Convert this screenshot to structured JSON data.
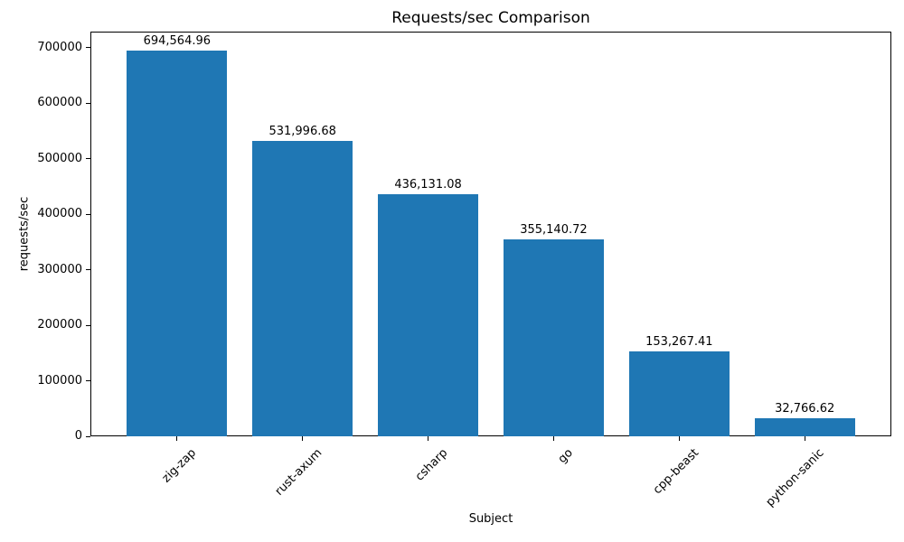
{
  "chart_data": {
    "type": "bar",
    "title": "Requests/sec Comparison",
    "xlabel": "Subject",
    "ylabel": "requests/sec",
    "categories": [
      "zig-zap",
      "rust-axum",
      "csharp",
      "go",
      "cpp-beast",
      "python-sanic"
    ],
    "values": [
      694564.96,
      531996.68,
      436131.08,
      355140.72,
      153267.41,
      32766.62
    ],
    "value_labels": [
      "694,564.96",
      "531,996.68",
      "436,131.08",
      "355,140.72",
      "153,267.41",
      "32,766.62"
    ],
    "yticks": [
      0,
      100000,
      200000,
      300000,
      400000,
      500000,
      600000,
      700000
    ],
    "ylim": [
      0,
      729293
    ],
    "bar_color": "#1f77b4",
    "grid": false,
    "legend": "none",
    "xtick_rotation_deg": 45
  }
}
